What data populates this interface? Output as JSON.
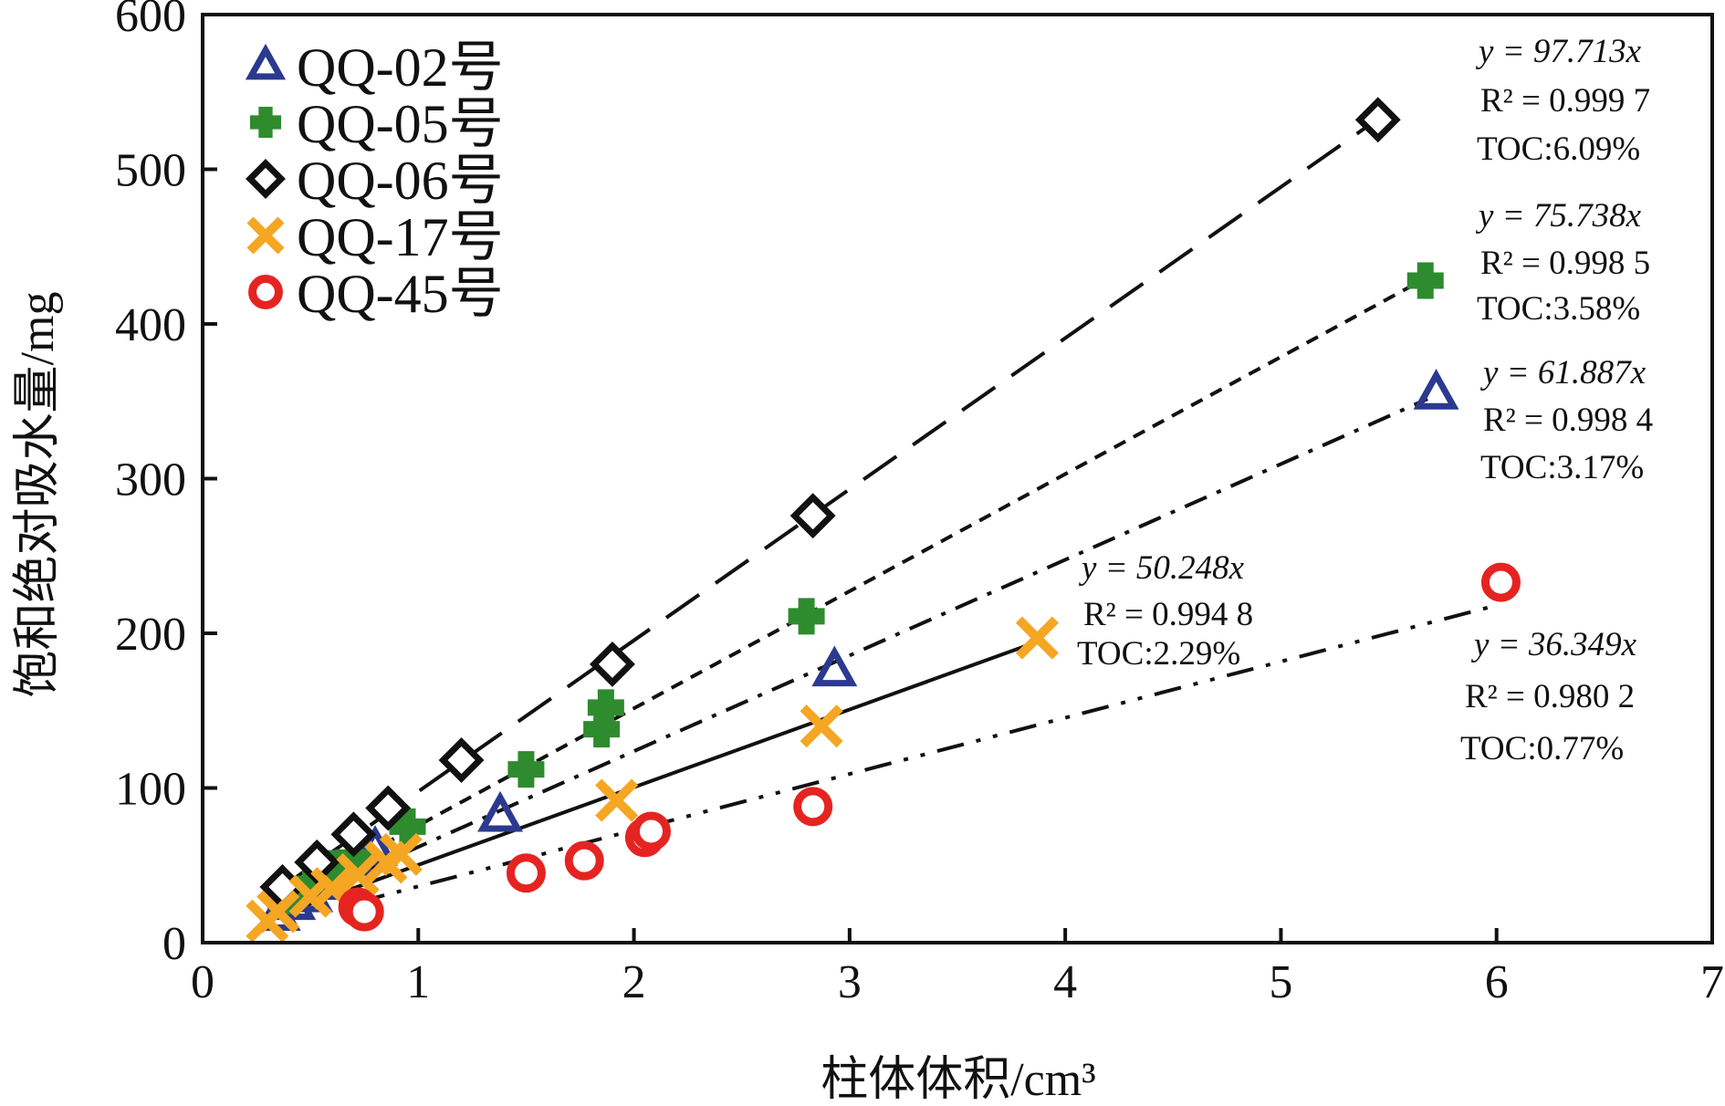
{
  "chart_data": {
    "type": "scatter",
    "xlabel": "柱体体积/cm³",
    "ylabel": "饱和绝对吸水量/mg",
    "xlim": [
      0,
      7
    ],
    "ylim": [
      0,
      600
    ],
    "x_ticks": [
      "0",
      "1",
      "2",
      "3",
      "4",
      "5",
      "6",
      "7"
    ],
    "y_ticks": [
      "0",
      "100",
      "200",
      "300",
      "400",
      "500",
      "600"
    ],
    "grid": false,
    "legend_position": "top-left",
    "series": [
      {
        "name": "QQ-02号",
        "marker": "triangle",
        "color": "#2B3A8F",
        "line_style": "dash-dot",
        "slope": 61.887,
        "points": [
          [
            0.35,
            18
          ],
          [
            0.42,
            25
          ],
          [
            0.5,
            30
          ],
          [
            0.6,
            38
          ],
          [
            0.7,
            52
          ],
          [
            0.8,
            60
          ],
          [
            1.38,
            82
          ],
          [
            2.93,
            176
          ],
          [
            5.72,
            355
          ]
        ],
        "equation": "y = 61.887x",
        "r2": "R² = 0.998 4",
        "toc": "TOC:3.17%"
      },
      {
        "name": "QQ-05号",
        "marker": "plus",
        "color": "#2E8B2E",
        "line_style": "short-dash",
        "slope": 75.738,
        "points": [
          [
            0.4,
            30
          ],
          [
            0.5,
            38
          ],
          [
            0.6,
            48
          ],
          [
            0.7,
            55
          ],
          [
            0.95,
            75
          ],
          [
            1.5,
            112
          ],
          [
            1.85,
            138
          ],
          [
            1.87,
            152
          ],
          [
            2.8,
            211
          ],
          [
            5.67,
            428
          ]
        ],
        "equation": "y = 75.738x",
        "r2": "R² = 0.998 5",
        "toc": "TOC:3.58%"
      },
      {
        "name": "QQ-06号",
        "marker": "diamond",
        "color": "#111111",
        "line_style": "long-dash",
        "slope": 97.713,
        "points": [
          [
            0.37,
            36
          ],
          [
            0.53,
            52
          ],
          [
            0.7,
            70
          ],
          [
            0.86,
            87
          ],
          [
            1.2,
            118
          ],
          [
            1.9,
            180
          ],
          [
            2.83,
            276
          ],
          [
            5.45,
            532
          ]
        ],
        "equation": "y = 97.713x",
        "r2": "R² = 0.999 7",
        "toc": "TOC:6.09%"
      },
      {
        "name": "QQ-17号",
        "marker": "x",
        "color": "#F5A623",
        "line_style": "solid",
        "slope": 50.248,
        "points": [
          [
            0.3,
            14
          ],
          [
            0.35,
            20
          ],
          [
            0.5,
            30
          ],
          [
            0.6,
            35
          ],
          [
            0.72,
            44
          ],
          [
            0.85,
            52
          ],
          [
            0.92,
            57
          ],
          [
            1.92,
            92
          ],
          [
            2.87,
            140
          ],
          [
            3.87,
            197
          ]
        ],
        "equation": "y = 50.248x",
        "r2": "R² = 0.994 8",
        "toc": "TOC:2.29%"
      },
      {
        "name": "QQ-45号",
        "marker": "circle",
        "color": "#E52421",
        "line_style": "dash-dot-dot",
        "slope": 36.349,
        "points": [
          [
            0.72,
            23
          ],
          [
            0.75,
            20
          ],
          [
            1.5,
            45
          ],
          [
            1.77,
            53
          ],
          [
            2.05,
            68
          ],
          [
            2.08,
            72
          ],
          [
            2.83,
            88
          ],
          [
            6.02,
            233
          ]
        ],
        "equation": "y = 36.349x",
        "r2": "R² = 0.980 2",
        "toc": "TOC:0.77%"
      }
    ]
  }
}
